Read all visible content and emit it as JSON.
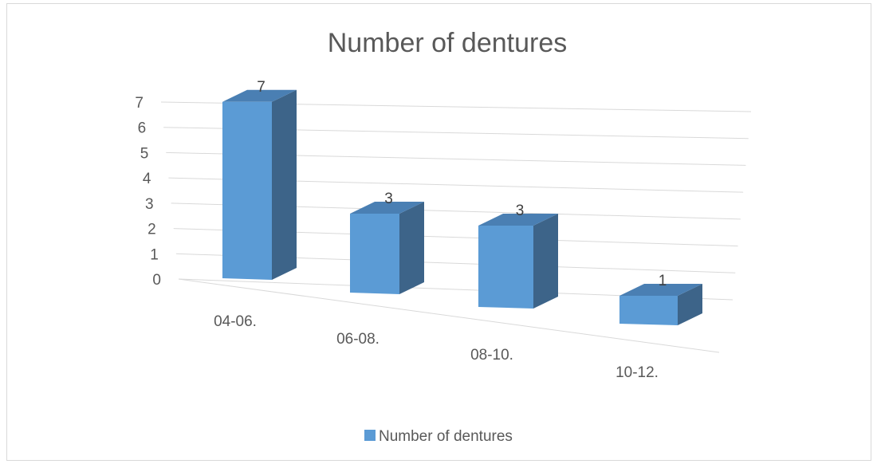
{
  "chart_data": {
    "type": "bar",
    "title": "Number of dentures",
    "categories": [
      "04-06.",
      "06-08.",
      "08-10.",
      "10-12."
    ],
    "series": [
      {
        "name": "Number of dentures",
        "values": [
          7,
          3,
          3,
          1
        ],
        "color": "#5b9bd5"
      }
    ],
    "data_labels": [
      "7",
      "3",
      "3",
      "1"
    ],
    "y_ticks": [
      "0",
      "1",
      "2",
      "3",
      "4",
      "5",
      "6",
      "7"
    ],
    "ylim": [
      0,
      7
    ],
    "grid": true,
    "legend": "bottom",
    "style": "3d-column",
    "colors": {
      "front": "#5b9bd5",
      "side": "#3d6489",
      "top": "#4a7fb3",
      "grid": "#d9d9d9",
      "text": "#595959"
    }
  }
}
